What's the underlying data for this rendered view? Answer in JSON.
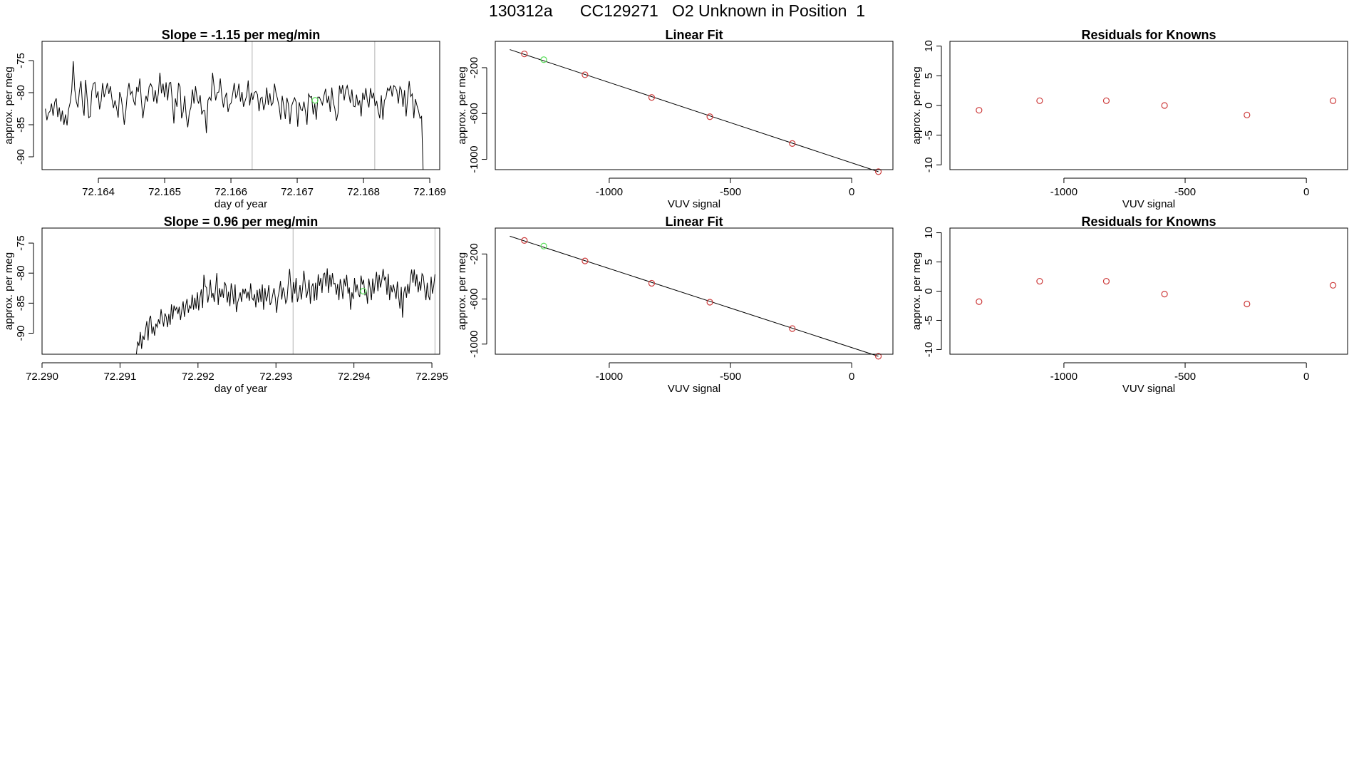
{
  "figure_title": "130312a      CC129271   O2 Unknown in Position  1",
  "colors": {
    "trace": "#000000",
    "known_point": "#cd3b3b",
    "unknown_point": "#5fe05f",
    "marker_line": "#bebebe"
  },
  "chart_data": [
    {
      "id": "time-series-1",
      "type": "line",
      "title": "Slope =  -1.15  per meg/min",
      "xlabel": "day of year",
      "ylabel": "approx. per meg",
      "xlim": [
        72.16315,
        72.16915
      ],
      "ylim": [
        -92,
        -72
      ],
      "xticks": [
        "72.164",
        "72.165",
        "72.166",
        "72.167",
        "72.168",
        "72.169"
      ],
      "xtick_values": [
        72.164,
        72.165,
        72.166,
        72.167,
        72.168,
        72.169
      ],
      "yticks": [
        "-75",
        "-80",
        "-85",
        "-90"
      ],
      "ytick_values": [
        -75,
        -80,
        -85,
        -90
      ],
      "x_start": 72.1632,
      "x_end": 72.1689,
      "y": [
        -82.5,
        -84.3,
        -83.2,
        -82.9,
        -81.7,
        -83.6,
        -81.5,
        -80.9,
        -83.8,
        -82.3,
        -84.5,
        -82.8,
        -85.0,
        -83.4,
        -85.1,
        -82.6,
        -81.6,
        -79.7,
        -75.1,
        -79.5,
        -81.4,
        -82.3,
        -79.8,
        -78.2,
        -81.9,
        -83.6,
        -78.0,
        -80.9,
        -83.9,
        -83.7,
        -79.8,
        -78.6,
        -78.4,
        -80.8,
        -79.8,
        -82.6,
        -81.3,
        -78.5,
        -80.7,
        -79.7,
        -78.5,
        -80.2,
        -79.0,
        -81.0,
        -82.4,
        -81.2,
        -82.4,
        -83.9,
        -79.9,
        -80.8,
        -82.7,
        -85.0,
        -82.8,
        -80.0,
        -78.5,
        -80.3,
        -79.8,
        -81.3,
        -82.0,
        -79.1,
        -79.9,
        -77.8,
        -81.1,
        -84.0,
        -82.0,
        -80.5,
        -81.4,
        -79.1,
        -78.6,
        -79.2,
        -81.4,
        -79.6,
        -81.7,
        -80.1,
        -76.9,
        -80.1,
        -78.6,
        -80.7,
        -78.4,
        -81.2,
        -78.5,
        -78.4,
        -81.3,
        -84.8,
        -80.9,
        -82.2,
        -78.5,
        -79.1,
        -84.0,
        -83.0,
        -80.5,
        -83.8,
        -85.4,
        -83.1,
        -82.3,
        -79.5,
        -81.7,
        -79.0,
        -80.9,
        -81.7,
        -80.4,
        -83.4,
        -82.8,
        -82.8,
        -86.3,
        -81.2,
        -80.7,
        -81.2,
        -76.9,
        -79.1,
        -81.2,
        -80.0,
        -79.9,
        -77.8,
        -80.5,
        -82.3,
        -80.8,
        -80.0,
        -83.0,
        -81.9,
        -81.6,
        -80.2,
        -78.5,
        -80.8,
        -80.3,
        -78.6,
        -81.4,
        -79.9,
        -82.2,
        -81.3,
        -80.5,
        -78.1,
        -82.0,
        -80.0,
        -81.1,
        -80.0,
        -79.8,
        -80.3,
        -82.9,
        -80.9,
        -80.7,
        -82.7,
        -81.7,
        -79.2,
        -81.9,
        -80.1,
        -82.0,
        -81.6,
        -78.6,
        -80.1,
        -81.0,
        -82.2,
        -84.2,
        -80.5,
        -82.1,
        -84.1,
        -80.8,
        -81.8,
        -84.9,
        -82.1,
        -81.4,
        -80.8,
        -81.5,
        -85.3,
        -81.5,
        -82.6,
        -82.8,
        -81.4,
        -82.9,
        -85.0,
        -80.2,
        -80.7,
        -80.6,
        -83.4,
        -81.7,
        -84.2,
        -80.7,
        -80.7,
        -81.3,
        -81.9,
        -80.4,
        -79.4,
        -81.6,
        -80.5,
        -83.0,
        -79.2,
        -81.5,
        -82.5,
        -84.4,
        -83.2,
        -78.9,
        -80.2,
        -78.8,
        -81.2,
        -79.6,
        -78.9,
        -80.2,
        -81.6,
        -79.5,
        -82.1,
        -82.2,
        -80.3,
        -82.0,
        -81.2,
        -83.7,
        -80.0,
        -81.1,
        -79.3,
        -81.3,
        -82.3,
        -79.3,
        -80.9,
        -80.0,
        -82.1,
        -81.3,
        -82.9,
        -84.0,
        -80.4,
        -84.2,
        -81.2,
        -80.8,
        -79.3,
        -79.7,
        -78.9,
        -80.6,
        -78.9,
        -79.1,
        -79.7,
        -81.7,
        -79.1,
        -79.6,
        -82.2,
        -79.6,
        -83.7,
        -80.9,
        -78.2,
        -80.6,
        -80.2,
        -84.0,
        -81.0,
        -82.0,
        -82.8,
        -84.0,
        -83.7,
        -92.0
      ],
      "vlines": [
        72.16632,
        72.16817
      ],
      "unknown_point": {
        "x": 72.16727,
        "y": -81.2
      }
    },
    {
      "id": "linear-fit-1",
      "type": "scatter",
      "title": "Linear Fit",
      "xlabel": "VUV signal",
      "ylabel": "approx. per meg",
      "xlim": [
        -1470,
        170
      ],
      "ylim": [
        -1090,
        30
      ],
      "xticks": [
        "-1000",
        "-500",
        "0"
      ],
      "xtick_values": [
        -1000,
        -500,
        0
      ],
      "yticks": [
        "-200",
        "-600",
        "-1000"
      ],
      "ytick_values": [
        -200,
        -600,
        -1000
      ],
      "known_points": [
        {
          "x": -1350,
          "y": -80
        },
        {
          "x": -1100,
          "y": -262
        },
        {
          "x": -825,
          "y": -460
        },
        {
          "x": -585,
          "y": -628
        },
        {
          "x": -245,
          "y": -862
        },
        {
          "x": 110,
          "y": -1108
        }
      ],
      "unknown_point": {
        "x": -1270,
        "y": -130
      },
      "fit_line": {
        "x": [
          -1410,
          110
        ],
        "y": [
          -42,
          -1108
        ]
      }
    },
    {
      "id": "residuals-1",
      "type": "scatter",
      "title": "Residuals for Knowns",
      "xlabel": "VUV signal",
      "ylabel": "approx. per meg",
      "xlim": [
        -1470,
        170
      ],
      "ylim": [
        -10.8,
        10.8
      ],
      "xticks": [
        "-1000",
        "-500",
        "0"
      ],
      "xtick_values": [
        -1000,
        -500,
        0
      ],
      "yticks": [
        "10",
        "5",
        "0",
        "-5",
        "-10"
      ],
      "ytick_values": [
        10,
        5,
        0,
        -5,
        -10
      ],
      "points": [
        {
          "x": -1350,
          "y": -0.8
        },
        {
          "x": -1100,
          "y": 0.8
        },
        {
          "x": -825,
          "y": 0.8
        },
        {
          "x": -585,
          "y": 0.0
        },
        {
          "x": -245,
          "y": -1.6
        },
        {
          "x": 110,
          "y": 0.8
        }
      ]
    },
    {
      "id": "time-series-2",
      "type": "line",
      "title": "Slope =  0.96  per meg/min",
      "xlabel": "day of year",
      "ylabel": "approx. per meg",
      "xlim": [
        72.29,
        72.2951
      ],
      "ylim": [
        -93.5,
        -72.5
      ],
      "xticks": [
        "72.290",
        "72.291",
        "72.292",
        "72.293",
        "72.294",
        "72.295"
      ],
      "xtick_values": [
        72.29,
        72.291,
        72.292,
        72.293,
        72.294,
        72.295
      ],
      "yticks": [
        "-75",
        "-80",
        "-85",
        "-90"
      ],
      "ytick_values": [
        -75,
        -80,
        -85,
        -90
      ],
      "x_start": 72.29121,
      "x_end": 72.29504,
      "y": [
        -93.5,
        -91.4,
        -92.1,
        -89.8,
        -92.6,
        -90.4,
        -91.1,
        -89.5,
        -88.0,
        -91.2,
        -87.6,
        -87.1,
        -90.1,
        -88.9,
        -90.4,
        -88.4,
        -89.0,
        -87.7,
        -88.5,
        -86.0,
        -87.6,
        -88.9,
        -86.7,
        -87.3,
        -89.0,
        -86.8,
        -88.6,
        -85.2,
        -87.7,
        -85.4,
        -86.2,
        -85.7,
        -86.8,
        -85.6,
        -87.8,
        -86.1,
        -84.7,
        -87.3,
        -85.4,
        -84.3,
        -86.6,
        -85.4,
        -85.9,
        -83.6,
        -86.1,
        -84.1,
        -85.9,
        -83.2,
        -86.2,
        -84.0,
        -82.7,
        -85.8,
        -80.3,
        -82.2,
        -82.4,
        -84.9,
        -83.5,
        -81.1,
        -84.1,
        -83.3,
        -84.8,
        -82.5,
        -80.0,
        -85.3,
        -82.5,
        -84.0,
        -82.6,
        -84.1,
        -81.5,
        -82.1,
        -84.9,
        -83.1,
        -85.5,
        -81.7,
        -83.0,
        -85.2,
        -81.9,
        -86.5,
        -84.9,
        -84.1,
        -83.2,
        -84.8,
        -82.6,
        -83.5,
        -82.6,
        -84.2,
        -83.1,
        -84.6,
        -81.7,
        -84.1,
        -84.5,
        -83.5,
        -85.7,
        -82.8,
        -84.9,
        -82.6,
        -84.8,
        -81.9,
        -86.1,
        -82.5,
        -84.7,
        -83.8,
        -82.0,
        -85.3,
        -84.8,
        -83.6,
        -82.5,
        -84.1,
        -86.6,
        -84.1,
        -83.0,
        -81.3,
        -84.4,
        -82.4,
        -83.3,
        -85.0,
        -84.5,
        -81.5,
        -79.3,
        -82.3,
        -84.9,
        -81.5,
        -83.4,
        -80.8,
        -84.8,
        -83.8,
        -82.0,
        -84.4,
        -82.5,
        -79.6,
        -81.7,
        -84.1,
        -83.0,
        -81.1,
        -85.1,
        -82.3,
        -81.7,
        -84.6,
        -81.6,
        -84.5,
        -80.2,
        -82.1,
        -80.8,
        -83.3,
        -80.2,
        -80.0,
        -82.2,
        -79.2,
        -83.3,
        -80.3,
        -82.3,
        -80.0,
        -81.8,
        -81.7,
        -83.6,
        -81.8,
        -84.5,
        -81.0,
        -82.3,
        -84.3,
        -80.9,
        -82.2,
        -80.3,
        -83.4,
        -82.4,
        -86.1,
        -83.2,
        -84.3,
        -80.8,
        -83.2,
        -81.9,
        -83.4,
        -84.0,
        -80.4,
        -81.9,
        -81.1,
        -83.7,
        -82.9,
        -85.1,
        -80.9,
        -82.4,
        -84.5,
        -80.9,
        -83.4,
        -81.4,
        -79.8,
        -83.0,
        -80.3,
        -82.4,
        -81.2,
        -79.3,
        -81.1,
        -80.6,
        -83.6,
        -80.1,
        -84.5,
        -82.0,
        -83.2,
        -81.9,
        -83.1,
        -84.3,
        -81.4,
        -83.9,
        -85.9,
        -82.3,
        -87.4,
        -83.3,
        -82.2,
        -84.1,
        -81.8,
        -83.4,
        -80.9,
        -79.4,
        -81.6,
        -79.4,
        -82.2,
        -80.2,
        -83.2,
        -81.4,
        -82.9,
        -80.1,
        -80.5,
        -82.7,
        -84.5,
        -81.6,
        -83.8,
        -84.5,
        -80.6,
        -83.4,
        -82.1,
        -80.2
      ],
      "vlines": [
        72.29322,
        72.29504
      ],
      "unknown_point": {
        "x": 72.29412,
        "y": -83.0
      }
    },
    {
      "id": "linear-fit-2",
      "type": "scatter",
      "title": "Linear Fit",
      "xlabel": "VUV signal",
      "ylabel": "approx. per meg",
      "xlim": [
        -1470,
        170
      ],
      "ylim": [
        -1090,
        30
      ],
      "xticks": [
        "-1000",
        "-500",
        "0"
      ],
      "xtick_values": [
        -1000,
        -500,
        0
      ],
      "yticks": [
        "-200",
        "-600",
        "-1000"
      ],
      "ytick_values": [
        -200,
        -600,
        -1000
      ],
      "known_points": [
        {
          "x": -1350,
          "y": -80
        },
        {
          "x": -1100,
          "y": -262
        },
        {
          "x": -825,
          "y": -460
        },
        {
          "x": -585,
          "y": -628
        },
        {
          "x": -245,
          "y": -862
        },
        {
          "x": 110,
          "y": -1108
        }
      ],
      "unknown_point": {
        "x": -1270,
        "y": -130
      },
      "fit_line": {
        "x": [
          -1410,
          110
        ],
        "y": [
          -42,
          -1108
        ]
      }
    },
    {
      "id": "residuals-2",
      "type": "scatter",
      "title": "Residuals for Knowns",
      "xlabel": "VUV signal",
      "ylabel": "approx. per meg",
      "xlim": [
        -1470,
        170
      ],
      "ylim": [
        -10.8,
        10.8
      ],
      "xticks": [
        "-1000",
        "-500",
        "0"
      ],
      "xtick_values": [
        -1000,
        -500,
        0
      ],
      "yticks": [
        "10",
        "5",
        "0",
        "-5",
        "-10"
      ],
      "ytick_values": [
        10,
        5,
        0,
        -5,
        -10
      ],
      "points": [
        {
          "x": -1350,
          "y": -1.8
        },
        {
          "x": -1100,
          "y": 1.7
        },
        {
          "x": -825,
          "y": 1.7
        },
        {
          "x": -585,
          "y": -0.5
        },
        {
          "x": -245,
          "y": -2.2
        },
        {
          "x": 110,
          "y": 1.0
        }
      ]
    }
  ]
}
